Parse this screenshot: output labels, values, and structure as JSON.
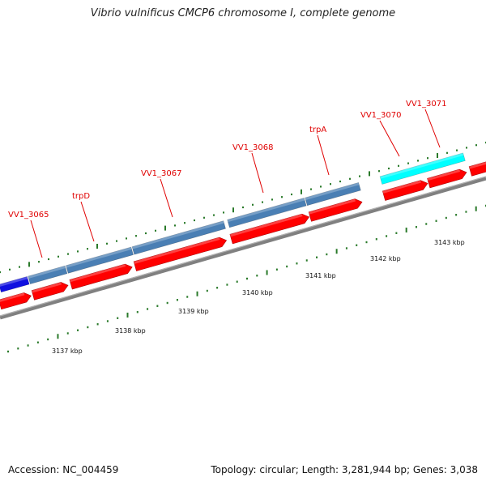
{
  "title": "Vibrio vulnificus CMCP6 chromosome I, complete genome",
  "footer": {
    "accession": "Accession: NC_004459",
    "summary": "Topology: circular; Length: 3,281,944 bp; Genes: 3,038"
  },
  "colors": {
    "cds": "#ff0000",
    "cds_dark": "#b00000",
    "gene_blue": "#4a7fb4",
    "gene_navy": "#1010e0",
    "gene_cyan": "#00ffff",
    "backbone": "#808080",
    "tick": "#2a7a2a",
    "gene_label": "#e00000",
    "kbp_label": "#111111"
  },
  "scale_labels": [
    "3137 kbp",
    "3138 kbp",
    "3139 kbp",
    "3140 kbp",
    "3141 kbp",
    "3142 kbp",
    "3143 kbp"
  ],
  "gene_labels": [
    "VV1_3065",
    "trpD",
    "VV1_3067",
    "VV1_3068",
    "trpA",
    "VV1_3070",
    "VV1_3071"
  ]
}
